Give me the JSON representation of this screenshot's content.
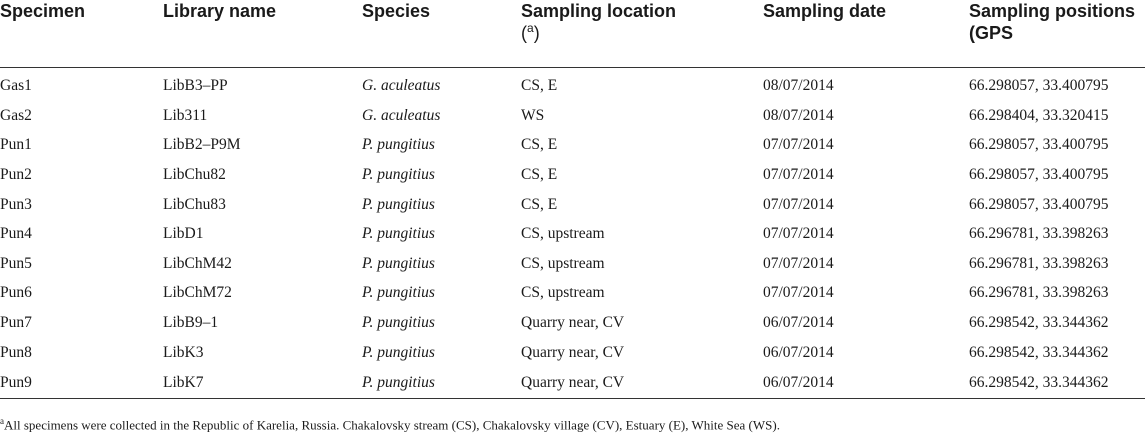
{
  "table": {
    "headers": {
      "specimen": "Specimen",
      "library": "Library name",
      "species": "Species",
      "location_line1": "Sampling location",
      "location_note": "(a)",
      "date": "Sampling date",
      "positions_line1": "Sampling positions",
      "positions_line2": "(GPS"
    },
    "rows": [
      {
        "specimen": "Gas1",
        "library": "LibB3–PP",
        "species": "G. aculeatus",
        "location": "CS, E",
        "date": "08/07/2014",
        "gps": "66.298057, 33.400795"
      },
      {
        "specimen": "Gas2",
        "library": "Lib311",
        "species": "G. aculeatus",
        "location": "WS",
        "date": "08/07/2014",
        "gps": "66.298404, 33.320415"
      },
      {
        "specimen": "Pun1",
        "library": "LibB2–P9M",
        "species": "P. pungitius",
        "location": "CS, E",
        "date": "07/07/2014",
        "gps": "66.298057, 33.400795"
      },
      {
        "specimen": "Pun2",
        "library": "LibChu82",
        "species": "P. pungitius",
        "location": "CS, E",
        "date": "07/07/2014",
        "gps": "66.298057, 33.400795"
      },
      {
        "specimen": "Pun3",
        "library": "LibChu83",
        "species": "P. pungitius",
        "location": "CS, E",
        "date": "07/07/2014",
        "gps": "66.298057, 33.400795"
      },
      {
        "specimen": "Pun4",
        "library": "LibD1",
        "species": "P. pungitius",
        "location": "CS, upstream",
        "date": "07/07/2014",
        "gps": "66.296781, 33.398263"
      },
      {
        "specimen": "Pun5",
        "library": "LibChM42",
        "species": "P. pungitius",
        "location": "CS, upstream",
        "date": "07/07/2014",
        "gps": "66.296781, 33.398263"
      },
      {
        "specimen": "Pun6",
        "library": "LibChM72",
        "species": "P. pungitius",
        "location": "CS, upstream",
        "date": "07/07/2014",
        "gps": "66.296781, 33.398263"
      },
      {
        "specimen": "Pun7",
        "library": "LibB9–1",
        "species": "P. pungitius",
        "location": "Quarry near, CV",
        "date": "06/07/2014",
        "gps": "66.298542, 33.344362"
      },
      {
        "specimen": "Pun8",
        "library": "LibK3",
        "species": "P. pungitius",
        "location": "Quarry near, CV",
        "date": "06/07/2014",
        "gps": "66.298542, 33.344362"
      },
      {
        "specimen": "Pun9",
        "library": "LibK7",
        "species": "P. pungitius",
        "location": "Quarry near, CV",
        "date": "06/07/2014",
        "gps": "66.298542, 33.344362"
      }
    ]
  },
  "footnote": {
    "marker": "a",
    "text": "All specimens were collected in the Republic of Karelia, Russia. Chakalovsky stream (CS), Chakalovsky village (CV), Estuary (E), White Sea (WS)."
  }
}
